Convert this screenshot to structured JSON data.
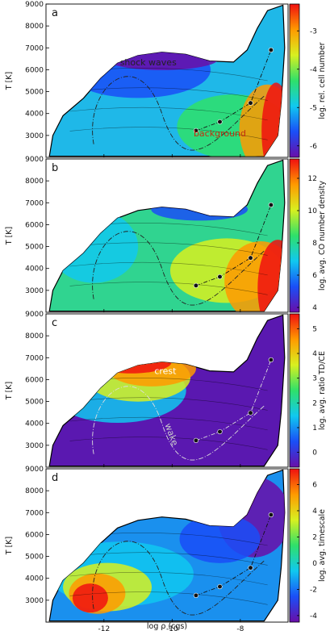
{
  "chart_data": [
    {
      "type": "heatmap",
      "panel_label": "a",
      "ylabel": "T [K]",
      "colorbar_label": "log. rel. cell number",
      "colorbar_ticks": [
        -3,
        -4,
        -5,
        -6
      ],
      "colorbar_range": [
        -6.3,
        -2.3
      ],
      "colormap": [
        "#6a0ea8",
        "#1a4ef7",
        "#10c8f0",
        "#2fe06a",
        "#d8f020",
        "#ff9a00",
        "#f01010"
      ],
      "annotations": [
        {
          "text": "shock waves",
          "at": [
            -10.7,
            6200
          ],
          "color": "#222222"
        },
        {
          "text": "background",
          "at": [
            -8.6,
            2950
          ],
          "color": "#c03010"
        }
      ]
    },
    {
      "type": "heatmap",
      "panel_label": "b",
      "ylabel": "T [K]",
      "colorbar_label": "log. avg. CO number density",
      "colorbar_ticks": [
        12,
        10,
        8,
        6,
        4
      ],
      "colorbar_range": [
        3.7,
        13.2
      ],
      "colormap": [
        "#6a0ea8",
        "#1a4ef7",
        "#10c8f0",
        "#2fe06a",
        "#d8f020",
        "#ff9a00",
        "#f01010"
      ],
      "annotations": []
    },
    {
      "type": "heatmap",
      "panel_label": "c",
      "ylabel": "T [K]",
      "colorbar_label": "log. avg. ratio TD/CE",
      "colorbar_ticks": [
        5,
        4,
        3,
        2,
        1,
        0
      ],
      "colorbar_range": [
        -0.6,
        5.6
      ],
      "colormap": [
        "#6a0ea8",
        "#1a4ef7",
        "#10c8f0",
        "#2fe06a",
        "#d8f020",
        "#ff9a00",
        "#f01010"
      ],
      "annotations": [
        {
          "text": "crest",
          "at": [
            -10.2,
            6250
          ],
          "color": "#ffffff"
        },
        {
          "text": "wake",
          "at": [
            -10.1,
            3450
          ],
          "color": "#cccccc"
        }
      ]
    },
    {
      "type": "heatmap",
      "panel_label": "d",
      "ylabel": "T [K]",
      "xlabel": "log ρ (cgs)",
      "colorbar_label": "log. avg. timescale",
      "colorbar_ticks": [
        6,
        4,
        2,
        0,
        -2,
        -4
      ],
      "colorbar_range": [
        -4.5,
        7.2
      ],
      "colormap": [
        "#6a0ea8",
        "#1a4ef7",
        "#10c8f0",
        "#2fe06a",
        "#d8f020",
        "#ff9a00",
        "#f01010"
      ],
      "annotations": []
    }
  ],
  "shared_axes": {
    "xlim": [
      -13.7,
      -6.6
    ],
    "x_ticks": [
      -12,
      -10,
      -8
    ],
    "ylim": [
      2000,
      9000
    ],
    "y_ticks": [
      3000,
      4000,
      5000,
      6000,
      7000,
      8000,
      9000
    ]
  },
  "overlay_track": {
    "points": [
      [
        -9.3,
        3220
      ],
      [
        -8.6,
        3620
      ],
      [
        -7.7,
        4480
      ],
      [
        -7.1,
        6900
      ]
    ],
    "marker_color": "#111111",
    "line_style": "dash-dot"
  }
}
